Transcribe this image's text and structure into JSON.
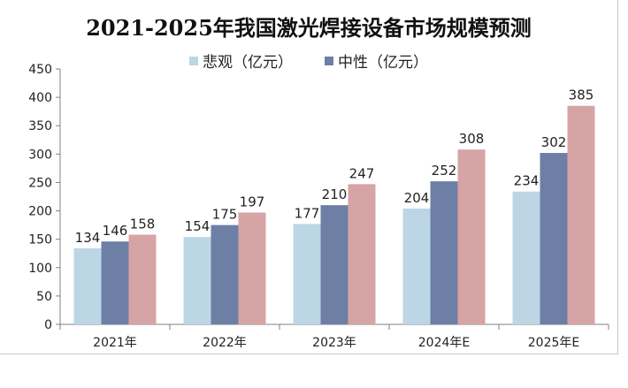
{
  "chart_data": {
    "type": "bar",
    "title": "2021-2025年我国激光焊接设备市场规模预测",
    "categories": [
      "2021年",
      "2022年",
      "2023年",
      "2024年E",
      "2025年E"
    ],
    "series": [
      {
        "name": "悲观（亿元）",
        "values": [
          134,
          154,
          177,
          204,
          234
        ],
        "color": "#bcd6e6"
      },
      {
        "name": "中性（亿元）",
        "values": [
          146,
          175,
          210,
          252,
          302
        ],
        "color": "#6e7fa6"
      },
      {
        "name": "",
        "values": [
          158,
          197,
          247,
          308,
          385
        ],
        "color": "#d6a4a4"
      }
    ],
    "ylim": [
      0,
      450
    ],
    "yticks": [
      0,
      50,
      100,
      150,
      200,
      250,
      300,
      350,
      400,
      450
    ],
    "xlabel": "",
    "ylabel": "",
    "grid": false,
    "legend_position": "top-center"
  }
}
